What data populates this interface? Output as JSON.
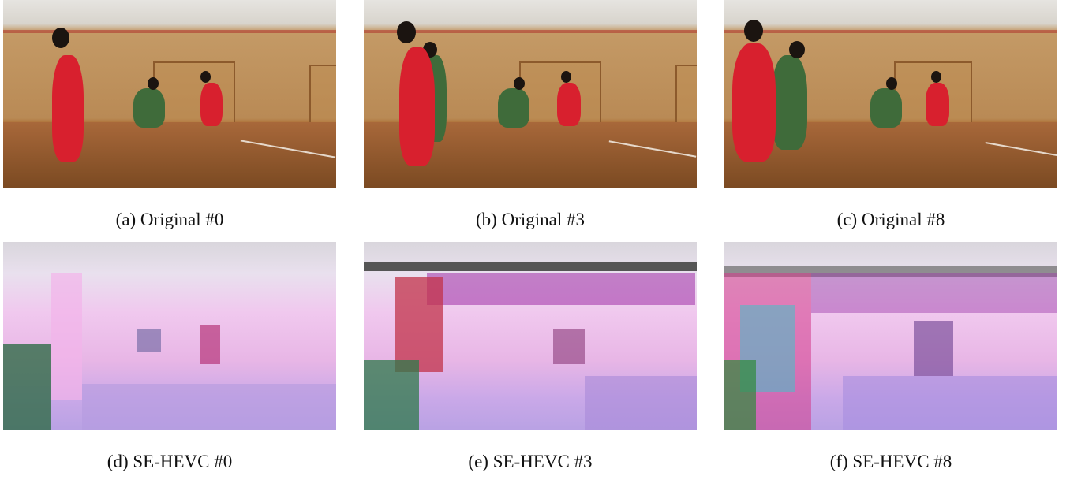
{
  "panels": [
    {
      "id": "a",
      "caption": "(a) Original #0"
    },
    {
      "id": "b",
      "caption": "(b) Original #3"
    },
    {
      "id": "c",
      "caption": "(c) Original #8"
    },
    {
      "id": "d",
      "caption": "(d) SE-HEVC #0"
    },
    {
      "id": "e",
      "caption": "(e) SE-HEVC #3"
    },
    {
      "id": "f",
      "caption": "(f) SE-HEVC #8"
    }
  ]
}
